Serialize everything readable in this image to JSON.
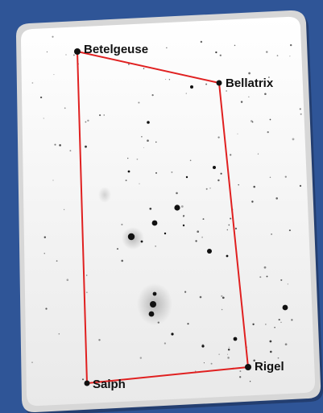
{
  "colors": {
    "background": "#2f5597",
    "card": "#f7f7f7",
    "outline": "#e02020",
    "star": "#111111"
  },
  "stars": [
    {
      "name": "Betelgeuse",
      "label": "Betelgeuse"
    },
    {
      "name": "Bellatrix",
      "label": "Bellatrix"
    },
    {
      "name": "Rigel",
      "label": "Rigel"
    },
    {
      "name": "Saiph",
      "label": "Saiph"
    }
  ]
}
